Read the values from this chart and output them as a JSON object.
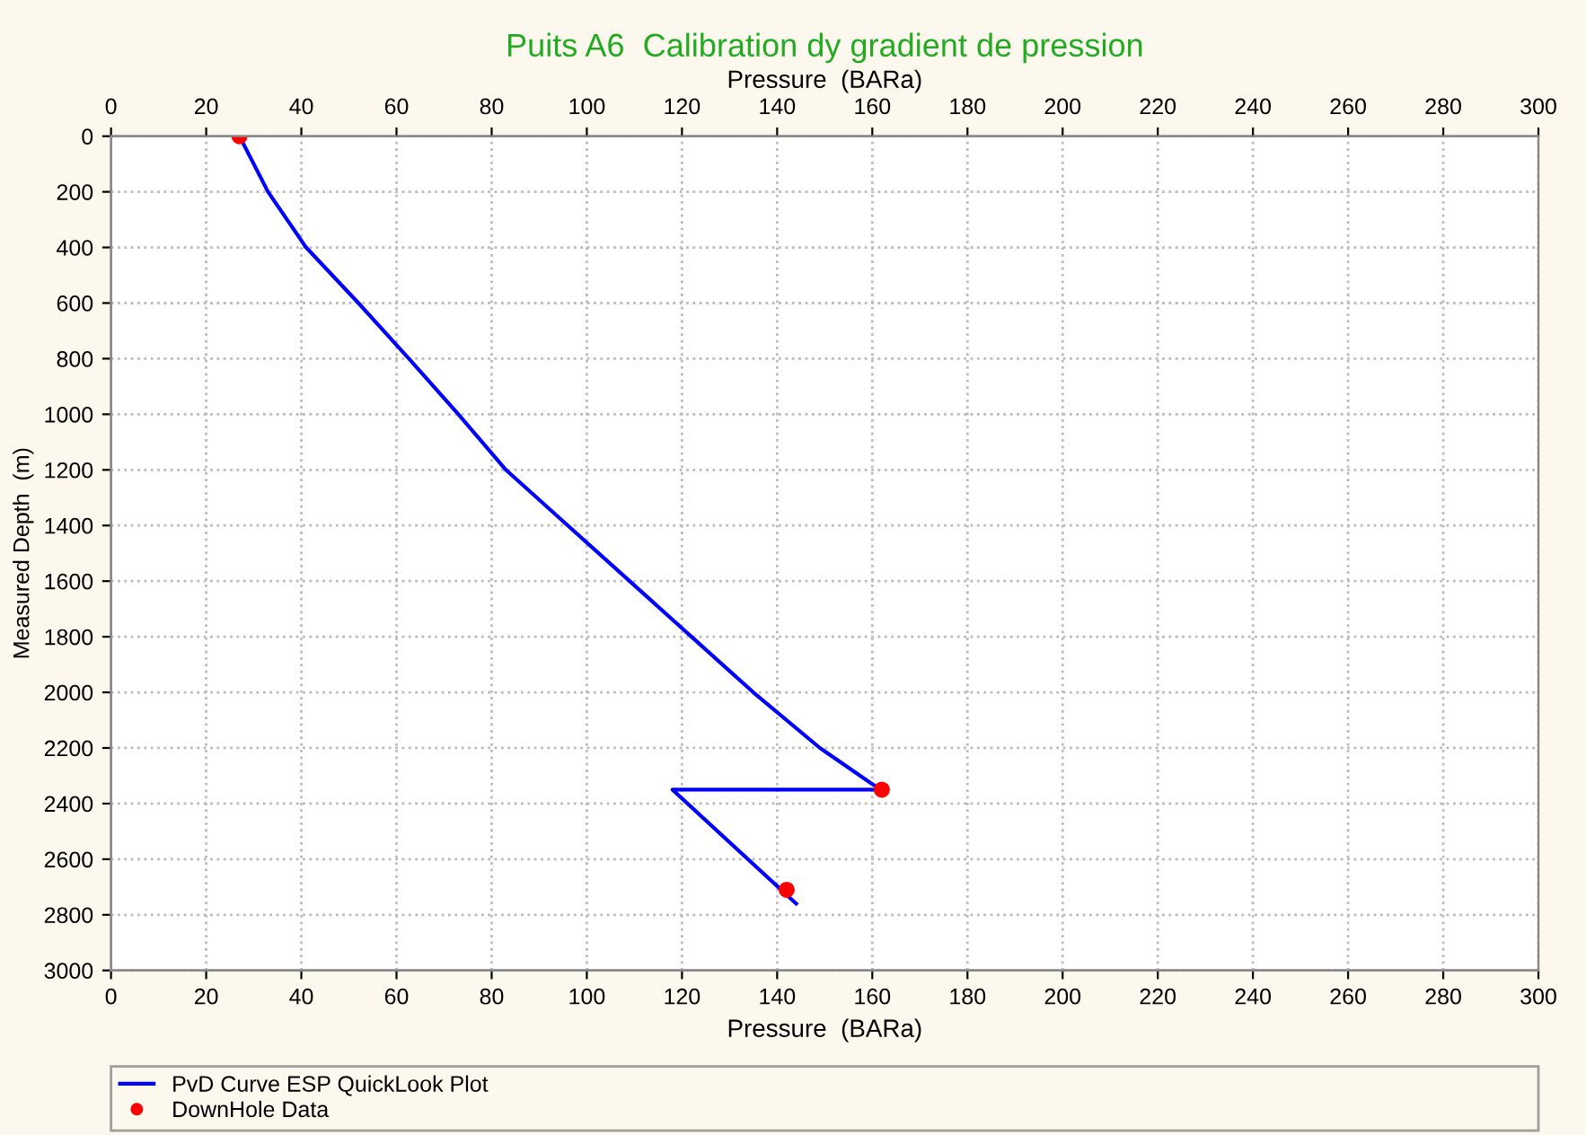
{
  "chart_data": {
    "type": "line",
    "title": "Puits A6  Calibration dy gradient de pression",
    "xlabel": "Pressure  (BARa)",
    "x2label": "Pressure  (BARa)",
    "ylabel": "Measured Depth  (m)",
    "xlim": [
      0,
      300
    ],
    "xticks": [
      0,
      20,
      40,
      60,
      80,
      100,
      120,
      140,
      160,
      180,
      200,
      220,
      240,
      260,
      280,
      300
    ],
    "x2lim": [
      0,
      300
    ],
    "x2ticks": [
      0,
      20,
      40,
      60,
      80,
      100,
      120,
      140,
      160,
      180,
      200,
      220,
      240,
      260,
      280,
      300
    ],
    "ylim": [
      3000,
      0
    ],
    "yticks": [
      0,
      200,
      400,
      600,
      800,
      1000,
      1200,
      1400,
      1600,
      1800,
      2000,
      2200,
      2400,
      2600,
      2800,
      3000
    ],
    "grid": true,
    "legend": "bottom",
    "series": [
      {
        "name": "PvD Curve ESP QuickLook Plot",
        "color": "#0000ff",
        "marker": "none",
        "line_style": "solid",
        "x": [
          27,
          33,
          41,
          52,
          62.6,
          73,
          83,
          96,
          109,
          122,
          135,
          149,
          160,
          162,
          118,
          144
        ],
        "values": [
          0,
          200,
          400,
          600,
          800,
          1000,
          1200,
          1400,
          1600,
          1800,
          2000,
          2200,
          2330,
          2350,
          2350,
          2760
        ]
      },
      {
        "name": "DownHole Data",
        "type": "scatter",
        "color": "#ff0000",
        "marker": "circle",
        "x": [
          27,
          162,
          142
        ],
        "values": [
          0,
          2350,
          2710
        ]
      }
    ]
  }
}
